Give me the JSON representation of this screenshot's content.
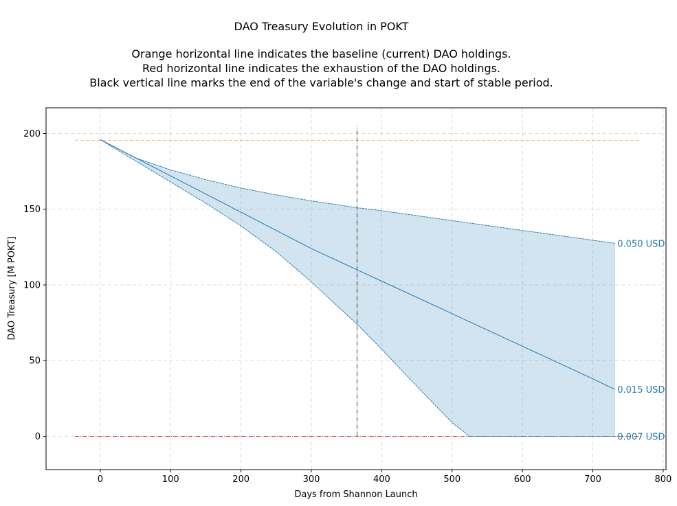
{
  "chart_data": {
    "type": "line",
    "title": "DAO Treasury Evolution in POKT",
    "subtitle_lines": [
      "Orange horizontal line indicates the baseline (current) DAO holdings.",
      "Red horizontal line indicates the exhaustion of the DAO holdings.",
      "Black vertical line marks the end of the variable's change and start of stable period."
    ],
    "xlabel": "Days from Shannon Launch",
    "ylabel": "DAO Treasury [M POKT]",
    "xlim": [
      -77,
      804
    ],
    "ylim": [
      -22,
      217
    ],
    "x_ticks": [
      0,
      100,
      200,
      300,
      400,
      500,
      600,
      700,
      800
    ],
    "y_ticks": [
      0,
      50,
      100,
      150,
      200
    ],
    "grid": true,
    "series": [
      {
        "name": "0.050 USD",
        "style": "dashed",
        "color": "#1f77b4",
        "x": [
          0,
          50,
          100,
          150,
          200,
          250,
          300,
          365,
          400,
          500,
          600,
          700,
          731
        ],
        "y": [
          196,
          184,
          176,
          169.5,
          164,
          159.5,
          155.5,
          151,
          149,
          142.5,
          136,
          129.5,
          127.5
        ]
      },
      {
        "name": "0.015 USD",
        "style": "solid",
        "color": "#1f77b4",
        "x": [
          0,
          100,
          200,
          300,
          365,
          400,
          500,
          600,
          700,
          731
        ],
        "y": [
          196,
          172,
          148,
          124,
          110,
          102.5,
          81,
          59.5,
          38,
          31
        ]
      },
      {
        "name": "0.007 USD",
        "style": "dashed",
        "color": "#1f77b4",
        "x": [
          0,
          50,
          100,
          150,
          200,
          250,
          300,
          365,
          400,
          450,
          500,
          525,
          731
        ],
        "y": [
          196,
          182,
          168,
          154,
          139,
          122,
          102,
          74,
          57.5,
          33,
          9,
          0,
          0
        ]
      }
    ],
    "reference_lines": [
      {
        "kind": "horizontal",
        "meaning": "baseline",
        "color": "#ff7f0e",
        "y": 195.5,
        "x_from": -36,
        "x_to": 766
      },
      {
        "kind": "horizontal",
        "meaning": "exhaustion",
        "color": "#d62728",
        "y": 0,
        "x_from": -36,
        "x_to": 766
      },
      {
        "kind": "vertical",
        "meaning": "end of variable change",
        "color": "#000000",
        "x": 365,
        "y_from": 0,
        "y_to": 205
      }
    ],
    "band": {
      "upper_series": "0.050 USD",
      "lower_series": "0.007 USD",
      "color": "#1f77b4",
      "opacity": 0.2
    }
  }
}
